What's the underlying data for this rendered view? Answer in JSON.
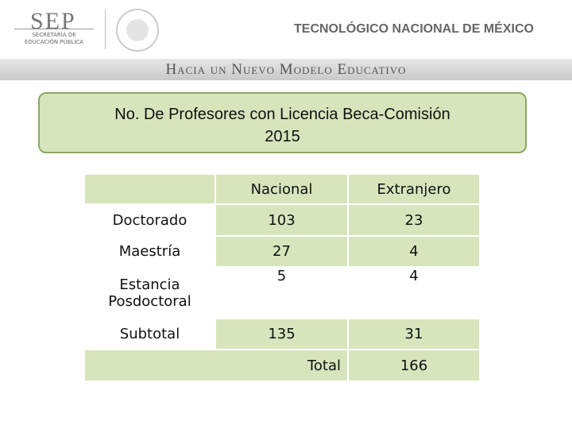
{
  "header": {
    "sep": "SEP",
    "sep_subtitle": [
      "SECRETARÍA DE",
      "EDUCACIÓN PÚBLICA"
    ],
    "institution": "TECNOLÓGICO NACIONAL DE MÉXICO",
    "slogan": "Hacia un Nuevo Modelo Educativo"
  },
  "title": [
    "No. De Profesores con Licencia Beca-Comisión",
    "2015"
  ],
  "table": {
    "columns": [
      "Nacional",
      "Extranjero"
    ],
    "rows": [
      [
        "Doctorado",
        103,
        23
      ],
      [
        "Maestría",
        27,
        4
      ],
      [
        "Estancia Posdoctoral",
        5,
        4
      ],
      [
        "Subtotal",
        135,
        31
      ]
    ],
    "total": [
      "Total",
      166
    ]
  }
}
